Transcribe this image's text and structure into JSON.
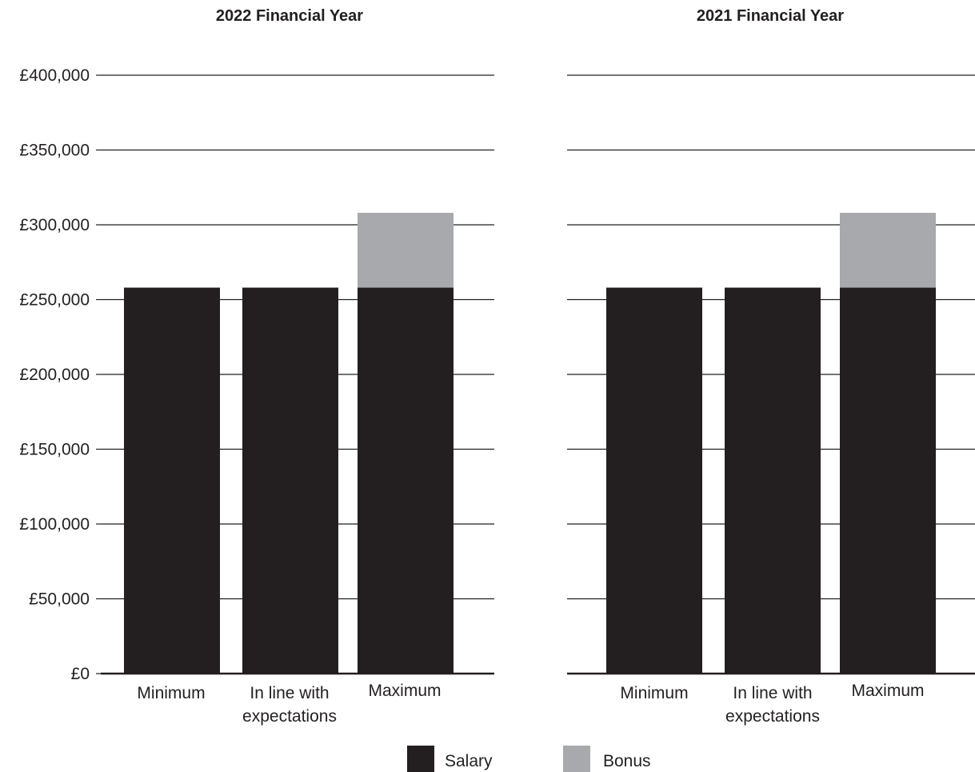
{
  "chart_data": [
    {
      "type": "bar",
      "stacked": true,
      "title": "2022 Financial Year",
      "categories": [
        [
          "Minimum"
        ],
        [
          "In line with",
          "expectations"
        ],
        [
          "Maximum"
        ]
      ],
      "series": [
        {
          "name": "Salary",
          "values": [
            258000,
            258000,
            258000
          ]
        },
        {
          "name": "Bonus",
          "values": [
            0,
            0,
            50000
          ]
        }
      ],
      "ylim": [
        0,
        400000
      ],
      "yticks": [
        "£0",
        "£50,000",
        "£100,000",
        "£150,000",
        "£200,000",
        "£250,000",
        "£300,000",
        "£350,000",
        "£400,000"
      ],
      "grid": true
    },
    {
      "type": "bar",
      "stacked": true,
      "title": "2021 Financial Year",
      "categories": [
        [
          "Minimum"
        ],
        [
          "In line with",
          "expectations"
        ],
        [
          "Maximum"
        ]
      ],
      "series": [
        {
          "name": "Salary",
          "values": [
            258000,
            258000,
            258000
          ]
        },
        {
          "name": "Bonus",
          "values": [
            0,
            0,
            50000
          ]
        }
      ],
      "ylim": [
        0,
        400000
      ],
      "yticks": [],
      "grid": true
    }
  ],
  "legend": [
    {
      "label": "Salary",
      "color": "#231f20"
    },
    {
      "label": "Bonus",
      "color": "#a7a9ac"
    }
  ],
  "colors": {
    "Salary": "#231f20",
    "Bonus": "#a7a9ac",
    "grid": "#231f20",
    "text": "#231f20"
  }
}
